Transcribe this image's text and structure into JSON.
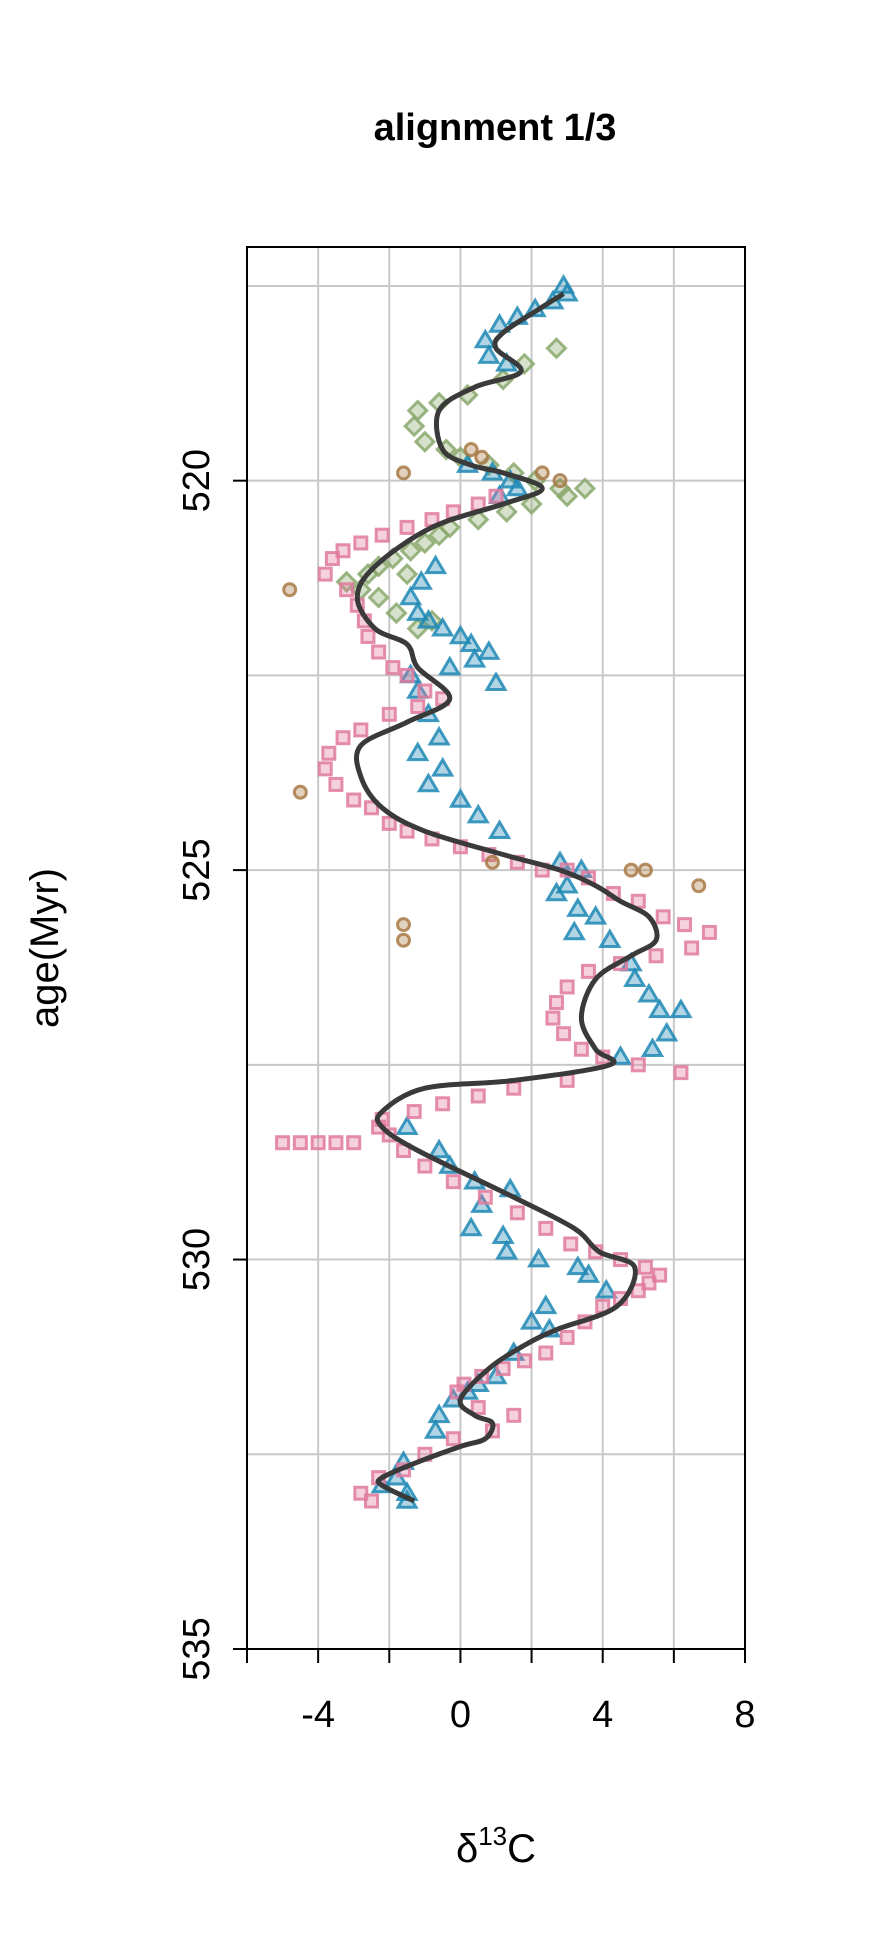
{
  "chart_data": {
    "type": "scatter",
    "title": "alignment 1/3",
    "xlabel": {
      "base": "δ",
      "sup": "13",
      "rest": "C"
    },
    "ylabel": "age(Myr)",
    "xlim": [
      -6,
      8
    ],
    "ylim": [
      535,
      517
    ],
    "y_reversed": true,
    "xticks": [
      -4,
      0,
      4,
      8
    ],
    "xticks_minor": [
      -6,
      -2,
      2,
      6
    ],
    "yticks": [
      520,
      525,
      530,
      535
    ],
    "grid": true,
    "legend": "none",
    "series": [
      {
        "marker": "diamond",
        "color": "#8aa86c",
        "points": [
          [
            2.7,
            518.3
          ],
          [
            1.8,
            518.5
          ],
          [
            1.2,
            518.7
          ],
          [
            0.2,
            518.9
          ],
          [
            -0.6,
            519.0
          ],
          [
            -1.2,
            519.1
          ],
          [
            -1.3,
            519.3
          ],
          [
            -1.0,
            519.5
          ],
          [
            -0.4,
            519.6
          ],
          [
            0.0,
            519.7
          ],
          [
            0.8,
            519.8
          ],
          [
            1.5,
            519.9
          ],
          [
            2.1,
            520.0
          ],
          [
            2.8,
            520.1
          ],
          [
            3.5,
            520.1
          ],
          [
            3.0,
            520.2
          ],
          [
            2.0,
            520.3
          ],
          [
            1.3,
            520.4
          ],
          [
            0.5,
            520.5
          ],
          [
            -0.3,
            520.6
          ],
          [
            -1.0,
            520.8
          ],
          [
            -1.4,
            520.9
          ],
          [
            -1.9,
            521.0
          ],
          [
            -2.3,
            521.1
          ],
          [
            -2.6,
            521.2
          ],
          [
            -3.2,
            521.3
          ],
          [
            -2.8,
            521.4
          ],
          [
            -2.3,
            521.5
          ],
          [
            -1.8,
            521.7
          ],
          [
            -1.2,
            521.9
          ],
          [
            -0.8,
            521.8
          ],
          [
            -1.5,
            521.2
          ],
          [
            -0.6,
            520.7
          ]
        ]
      },
      {
        "marker": "triangle",
        "color": "#1f88b5",
        "points": [
          [
            2.9,
            517.5
          ],
          [
            3.0,
            517.6
          ],
          [
            2.6,
            517.7
          ],
          [
            2.1,
            517.8
          ],
          [
            1.6,
            517.9
          ],
          [
            1.1,
            518.0
          ],
          [
            0.7,
            518.2
          ],
          [
            0.8,
            518.4
          ],
          [
            1.3,
            518.5
          ],
          [
            0.2,
            519.8
          ],
          [
            0.9,
            519.9
          ],
          [
            1.4,
            520.0
          ],
          [
            1.6,
            520.1
          ],
          [
            1.1,
            520.2
          ],
          [
            -0.7,
            521.1
          ],
          [
            -1.1,
            521.3
          ],
          [
            -1.4,
            521.5
          ],
          [
            -1.2,
            521.7
          ],
          [
            -0.9,
            521.8
          ],
          [
            -0.5,
            521.9
          ],
          [
            0.0,
            522.0
          ],
          [
            0.3,
            522.1
          ],
          [
            0.8,
            522.2
          ],
          [
            0.4,
            522.3
          ],
          [
            -0.3,
            522.4
          ],
          [
            -1.4,
            522.5
          ],
          [
            -1.2,
            522.7
          ],
          [
            1.0,
            522.6
          ],
          [
            -0.9,
            523.0
          ],
          [
            -0.6,
            523.3
          ],
          [
            -1.2,
            523.5
          ],
          [
            -0.5,
            523.7
          ],
          [
            -0.9,
            523.9
          ],
          [
            0.0,
            524.1
          ],
          [
            0.5,
            524.3
          ],
          [
            1.1,
            524.5
          ],
          [
            2.8,
            524.9
          ],
          [
            3.4,
            525.0
          ],
          [
            3.0,
            525.2
          ],
          [
            2.7,
            525.3
          ],
          [
            3.3,
            525.5
          ],
          [
            3.8,
            525.6
          ],
          [
            3.2,
            525.8
          ],
          [
            4.2,
            525.9
          ],
          [
            4.8,
            526.2
          ],
          [
            4.9,
            526.4
          ],
          [
            5.3,
            526.6
          ],
          [
            5.6,
            526.8
          ],
          [
            6.2,
            526.8
          ],
          [
            5.8,
            527.1
          ],
          [
            5.4,
            527.3
          ],
          [
            4.5,
            527.4
          ],
          [
            -1.5,
            528.3
          ],
          [
            -0.6,
            528.6
          ],
          [
            -0.3,
            528.8
          ],
          [
            0.4,
            529.0
          ],
          [
            1.4,
            529.1
          ],
          [
            0.6,
            529.3
          ],
          [
            0.3,
            529.6
          ],
          [
            1.2,
            529.7
          ],
          [
            1.3,
            529.9
          ],
          [
            2.2,
            530.0
          ],
          [
            3.3,
            530.1
          ],
          [
            3.6,
            530.2
          ],
          [
            4.1,
            530.4
          ],
          [
            2.4,
            530.6
          ],
          [
            2.0,
            530.8
          ],
          [
            2.5,
            530.9
          ],
          [
            1.5,
            531.2
          ],
          [
            1.0,
            531.5
          ],
          [
            0.5,
            531.6
          ],
          [
            0.2,
            531.7
          ],
          [
            -0.2,
            531.8
          ],
          [
            -0.6,
            532.0
          ],
          [
            -0.7,
            532.2
          ],
          [
            -1.6,
            532.6
          ],
          [
            -1.8,
            532.8
          ],
          [
            -2.2,
            532.9
          ],
          [
            -1.5,
            533.0
          ],
          [
            -1.5,
            533.1
          ]
        ]
      },
      {
        "marker": "square",
        "color": "#e07a9e",
        "points": [
          [
            1.0,
            520.2
          ],
          [
            0.5,
            520.3
          ],
          [
            -0.2,
            520.4
          ],
          [
            -0.8,
            520.5
          ],
          [
            -1.5,
            520.6
          ],
          [
            -2.2,
            520.7
          ],
          [
            -2.8,
            520.8
          ],
          [
            -3.3,
            520.9
          ],
          [
            -3.6,
            521.0
          ],
          [
            -3.8,
            521.2
          ],
          [
            -3.2,
            521.4
          ],
          [
            -2.9,
            521.6
          ],
          [
            -2.7,
            521.8
          ],
          [
            -2.6,
            522.0
          ],
          [
            -2.3,
            522.2
          ],
          [
            -1.9,
            522.4
          ],
          [
            -1.5,
            522.5
          ],
          [
            -1.0,
            522.7
          ],
          [
            -0.5,
            522.8
          ],
          [
            -1.2,
            522.9
          ],
          [
            -2.0,
            523.0
          ],
          [
            -2.8,
            523.2
          ],
          [
            -3.3,
            523.3
          ],
          [
            -3.7,
            523.5
          ],
          [
            -3.8,
            523.7
          ],
          [
            -3.5,
            523.9
          ],
          [
            -3.0,
            524.1
          ],
          [
            -2.5,
            524.2
          ],
          [
            -2.0,
            524.4
          ],
          [
            -1.5,
            524.5
          ],
          [
            -0.8,
            524.6
          ],
          [
            0.0,
            524.7
          ],
          [
            0.8,
            524.8
          ],
          [
            1.6,
            524.9
          ],
          [
            2.3,
            525.0
          ],
          [
            3.0,
            525.0
          ],
          [
            3.6,
            525.1
          ],
          [
            4.3,
            525.3
          ],
          [
            5.0,
            525.4
          ],
          [
            5.7,
            525.6
          ],
          [
            6.3,
            525.7
          ],
          [
            7.0,
            525.8
          ],
          [
            6.5,
            526.0
          ],
          [
            5.5,
            526.1
          ],
          [
            4.5,
            526.2
          ],
          [
            3.6,
            526.3
          ],
          [
            3.0,
            526.5
          ],
          [
            2.7,
            526.7
          ],
          [
            2.6,
            526.9
          ],
          [
            2.9,
            527.1
          ],
          [
            3.4,
            527.3
          ],
          [
            4.0,
            527.4
          ],
          [
            5.0,
            527.5
          ],
          [
            6.2,
            527.6
          ],
          [
            3.0,
            527.7
          ],
          [
            1.5,
            527.8
          ],
          [
            0.5,
            527.9
          ],
          [
            -0.5,
            528.0
          ],
          [
            -1.3,
            528.1
          ],
          [
            -2.2,
            528.2
          ],
          [
            -2.3,
            528.3
          ],
          [
            -2.0,
            528.4
          ],
          [
            -3.0,
            528.5
          ],
          [
            -4.0,
            528.5
          ],
          [
            -5.0,
            528.5
          ],
          [
            -4.5,
            528.5
          ],
          [
            -3.5,
            528.5
          ],
          [
            -1.6,
            528.6
          ],
          [
            -1.0,
            528.8
          ],
          [
            -0.2,
            529.0
          ],
          [
            0.7,
            529.2
          ],
          [
            1.6,
            529.4
          ],
          [
            2.4,
            529.6
          ],
          [
            3.1,
            529.8
          ],
          [
            3.8,
            529.9
          ],
          [
            4.5,
            530.0
          ],
          [
            5.2,
            530.1
          ],
          [
            5.6,
            530.2
          ],
          [
            5.3,
            530.3
          ],
          [
            5.0,
            530.4
          ],
          [
            4.5,
            530.5
          ],
          [
            4.0,
            530.6
          ],
          [
            3.5,
            530.8
          ],
          [
            3.0,
            531.0
          ],
          [
            2.4,
            531.2
          ],
          [
            1.8,
            531.3
          ],
          [
            1.2,
            531.4
          ],
          [
            0.6,
            531.5
          ],
          [
            0.1,
            531.6
          ],
          [
            -0.1,
            531.7
          ],
          [
            0.5,
            531.9
          ],
          [
            1.5,
            532.0
          ],
          [
            0.9,
            532.2
          ],
          [
            -0.2,
            532.3
          ],
          [
            -1.0,
            532.5
          ],
          [
            -1.6,
            532.7
          ],
          [
            -2.3,
            532.8
          ],
          [
            -2.8,
            533.0
          ],
          [
            -2.5,
            533.1
          ]
        ]
      },
      {
        "marker": "circle",
        "color": "#a87a46",
        "points": [
          [
            0.3,
            519.6
          ],
          [
            0.6,
            519.7
          ],
          [
            -1.6,
            519.9
          ],
          [
            2.3,
            519.9
          ],
          [
            2.8,
            520.0
          ],
          [
            -4.8,
            521.4
          ],
          [
            -4.5,
            524.0
          ],
          [
            0.9,
            524.9
          ],
          [
            4.8,
            525.0
          ],
          [
            5.2,
            525.0
          ],
          [
            6.7,
            525.2
          ],
          [
            -1.6,
            525.7
          ],
          [
            -1.6,
            525.9
          ]
        ]
      }
    ],
    "fit_line": {
      "color": "#3a3a3a",
      "points": [
        [
          2.9,
          517.6
        ],
        [
          2.2,
          517.8
        ],
        [
          1.2,
          518.1
        ],
        [
          1.0,
          518.3
        ],
        [
          1.7,
          518.6
        ],
        [
          0.4,
          518.8
        ],
        [
          -0.6,
          519.1
        ],
        [
          -0.5,
          519.6
        ],
        [
          0.3,
          519.8
        ],
        [
          1.2,
          519.9
        ],
        [
          2.3,
          520.1
        ],
        [
          1.2,
          520.3
        ],
        [
          -0.8,
          520.6
        ],
        [
          -2.4,
          521.1
        ],
        [
          -2.9,
          521.5
        ],
        [
          -2.4,
          521.9
        ],
        [
          -1.5,
          522.1
        ],
        [
          -1.2,
          522.4
        ],
        [
          -0.3,
          522.8
        ],
        [
          -1.5,
          523.1
        ],
        [
          -2.8,
          523.4
        ],
        [
          -2.8,
          523.8
        ],
        [
          -2.2,
          524.2
        ],
        [
          -1.0,
          524.5
        ],
        [
          1.2,
          524.8
        ],
        [
          2.8,
          525.0
        ],
        [
          3.8,
          525.2
        ],
        [
          4.5,
          525.4
        ],
        [
          5.3,
          525.6
        ],
        [
          5.5,
          525.9
        ],
        [
          4.8,
          526.1
        ],
        [
          3.8,
          526.4
        ],
        [
          3.4,
          526.9
        ],
        [
          3.8,
          527.3
        ],
        [
          4.2,
          527.5
        ],
        [
          1.5,
          527.7
        ],
        [
          -1.0,
          527.8
        ],
        [
          -2.2,
          528.1
        ],
        [
          -2.2,
          528.3
        ],
        [
          -1.2,
          528.6
        ],
        [
          1.5,
          529.2
        ],
        [
          3.2,
          529.6
        ],
        [
          3.9,
          529.9
        ],
        [
          4.9,
          530.1
        ],
        [
          4.4,
          530.6
        ],
        [
          2.7,
          530.9
        ],
        [
          1.8,
          531.1
        ],
        [
          0.8,
          531.4
        ],
        [
          0.0,
          531.8
        ],
        [
          0.4,
          532.0
        ],
        [
          0.9,
          532.1
        ],
        [
          0.7,
          532.3
        ],
        [
          0.0,
          532.4
        ],
        [
          -1.2,
          532.6
        ],
        [
          -2.2,
          532.8
        ],
        [
          -2.2,
          532.9
        ],
        [
          -1.3,
          533.1
        ]
      ]
    }
  }
}
